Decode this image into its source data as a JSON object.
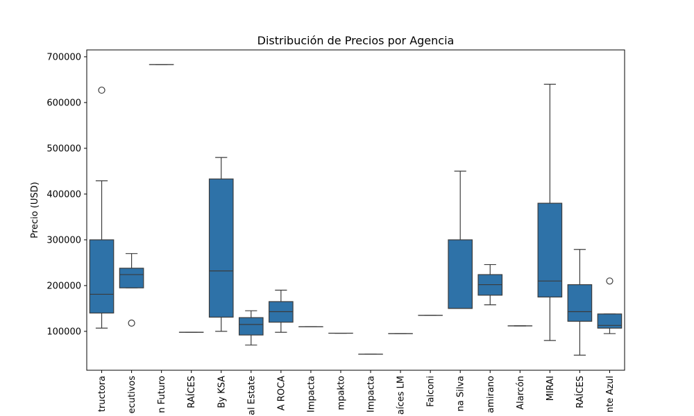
{
  "chart_data": {
    "type": "box",
    "title": "Distribución de Precios por Agencia",
    "xlabel": "",
    "ylabel": "Precio (USD)",
    "ylim": [
      15000,
      715000
    ],
    "yticks": [
      100000,
      200000,
      300000,
      400000,
      500000,
      600000,
      700000
    ],
    "grid": false,
    "color": "#2e72a8",
    "categories": [
      "tructora",
      "ecutivos",
      "n Futuro",
      "RAÍCES",
      "By KSA",
      "al Estate",
      "A ROCA",
      "Impacta",
      "mpakto",
      "Impacta",
      "aíces LM",
      "Falconi",
      "na Silva",
      "amirano",
      "Alarcón",
      "MIRAI",
      "RAÍCES",
      "nte Azul"
    ],
    "boxes": [
      {
        "min": 107000,
        "q1": 140000,
        "median": 181000,
        "q3": 300000,
        "max": 429000,
        "outliers": [
          627000
        ]
      },
      {
        "min": 195000,
        "q1": 195000,
        "median": 224000,
        "q3": 238000,
        "max": 270000,
        "outliers": [
          118000
        ]
      },
      {
        "min": 683000,
        "q1": 683000,
        "median": 683000,
        "q3": 683000,
        "max": 683000,
        "outliers": []
      },
      {
        "min": 98000,
        "q1": 98000,
        "median": 98000,
        "q3": 98000,
        "max": 98000,
        "outliers": []
      },
      {
        "min": 100000,
        "q1": 131000,
        "median": 232000,
        "q3": 433000,
        "max": 480000,
        "outliers": []
      },
      {
        "min": 70000,
        "q1": 92000,
        "median": 115000,
        "q3": 130000,
        "max": 145000,
        "outliers": []
      },
      {
        "min": 98000,
        "q1": 120000,
        "median": 143000,
        "q3": 165000,
        "max": 190000,
        "outliers": []
      },
      {
        "min": 110000,
        "q1": 110000,
        "median": 110000,
        "q3": 110000,
        "max": 110000,
        "outliers": []
      },
      {
        "min": 96000,
        "q1": 96000,
        "median": 96000,
        "q3": 96000,
        "max": 96000,
        "outliers": []
      },
      {
        "min": 50000,
        "q1": 50000,
        "median": 50000,
        "q3": 50000,
        "max": 50000,
        "outliers": []
      },
      {
        "min": 95000,
        "q1": 95000,
        "median": 95000,
        "q3": 95000,
        "max": 95000,
        "outliers": []
      },
      {
        "min": 135000,
        "q1": 135000,
        "median": 135000,
        "q3": 135000,
        "max": 135000,
        "outliers": []
      },
      {
        "min": 150000,
        "q1": 150000,
        "median": 150000,
        "q3": 300000,
        "max": 450000,
        "outliers": []
      },
      {
        "min": 158000,
        "q1": 179000,
        "median": 202000,
        "q3": 224000,
        "max": 246000,
        "outliers": []
      },
      {
        "min": 112000,
        "q1": 112000,
        "median": 112000,
        "q3": 112000,
        "max": 112000,
        "outliers": []
      },
      {
        "min": 80000,
        "q1": 175000,
        "median": 210000,
        "q3": 380000,
        "max": 640000,
        "outliers": []
      },
      {
        "min": 48000,
        "q1": 122000,
        "median": 143000,
        "q3": 202000,
        "max": 279000,
        "outliers": []
      },
      {
        "min": 95000,
        "q1": 107000,
        "median": 113000,
        "q3": 138000,
        "max": 138000,
        "outliers": [
          210000
        ]
      }
    ]
  }
}
